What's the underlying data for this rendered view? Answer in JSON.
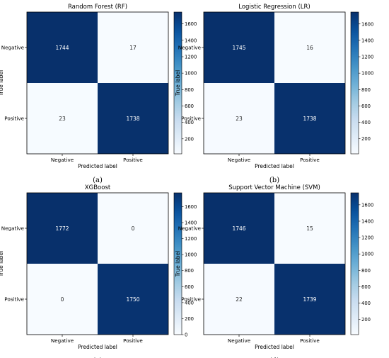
{
  "chart_data": [
    {
      "type": "heatmap",
      "title": "Random Forest (RF)",
      "xlabel": "Predicted label",
      "ylabel": "True label",
      "x_categories": [
        "Negative",
        "Positive"
      ],
      "y_categories": [
        "Negative",
        "Positive"
      ],
      "values": [
        [
          1744,
          17
        ],
        [
          23,
          1738
        ]
      ],
      "colorbar": {
        "ticks": [
          200,
          400,
          600,
          800,
          1000,
          1200,
          1400,
          1600
        ],
        "range": [
          17,
          1744
        ]
      },
      "caption": "(a)"
    },
    {
      "type": "heatmap",
      "title": "Logistic Regression (LR)",
      "xlabel": "Predicted label",
      "ylabel": "True label",
      "x_categories": [
        "Negative",
        "Positive"
      ],
      "y_categories": [
        "Negative",
        "Positive"
      ],
      "values": [
        [
          1745,
          16
        ],
        [
          23,
          1738
        ]
      ],
      "colorbar": {
        "ticks": [
          200,
          400,
          600,
          800,
          1000,
          1200,
          1400,
          1600
        ],
        "range": [
          16,
          1745
        ]
      },
      "caption": "(b)"
    },
    {
      "type": "heatmap",
      "title": "XGBoost",
      "xlabel": "Predicted label",
      "ylabel": "True label",
      "x_categories": [
        "Negative",
        "Positive"
      ],
      "y_categories": [
        "Negative",
        "Positive"
      ],
      "values": [
        [
          1772,
          0
        ],
        [
          0,
          1750
        ]
      ],
      "colorbar": {
        "ticks": [
          0,
          200,
          400,
          600,
          800,
          1000,
          1200,
          1400,
          1600
        ],
        "range": [
          0,
          1772
        ]
      },
      "caption": "(c)"
    },
    {
      "type": "heatmap",
      "title": "Support Vector Machine (SVM)",
      "xlabel": "Predicted label",
      "ylabel": "True label",
      "x_categories": [
        "Negative",
        "Positive"
      ],
      "y_categories": [
        "Negative",
        "Positive"
      ],
      "values": [
        [
          1746,
          15
        ],
        [
          22,
          1739
        ]
      ],
      "colorbar": {
        "ticks": [
          200,
          400,
          600,
          800,
          1000,
          1200,
          1400,
          1600
        ],
        "range": [
          15,
          1746
        ]
      },
      "caption": "(d)"
    }
  ],
  "colors": {
    "low": "#f7fbff",
    "high": "#08306b",
    "text_dark": "#262626",
    "text_light": "#ffffff"
  }
}
